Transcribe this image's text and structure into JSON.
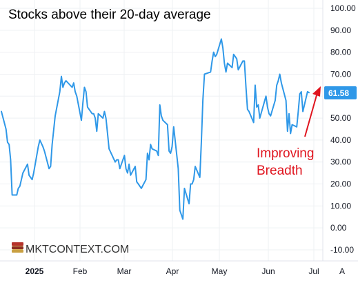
{
  "chart_data": {
    "type": "line",
    "title": "Stocks above their 20-day average",
    "ylim": [
      -10,
      100
    ],
    "y_ticks": [
      "100.00",
      "90.00",
      "80.00",
      "70.00",
      "60.00",
      "50.00",
      "40.00",
      "30.00",
      "20.00",
      "10.00",
      "0.00",
      "-10.00"
    ],
    "x_ticks": [
      {
        "label": "2025",
        "date": "2025-01-01",
        "bold": true
      },
      {
        "label": "Feb",
        "date": "2025-02-01",
        "bold": false
      },
      {
        "label": "Mar",
        "date": "2025-03-01",
        "bold": false
      },
      {
        "label": "Apr",
        "date": "2025-04-01",
        "bold": false
      },
      {
        "label": "May",
        "date": "2025-05-01",
        "bold": false
      },
      {
        "label": "Jun",
        "date": "2025-06-01",
        "bold": false
      },
      {
        "label": "Jul",
        "date": "2025-07-01",
        "bold": false
      }
    ],
    "last_value_label": "61.58",
    "annotation": {
      "lines": [
        "Improving",
        "Breadth"
      ]
    },
    "series": [
      {
        "color": "#2f98e8",
        "points": [
          [
            "2024-12-06",
            53
          ],
          [
            "2024-12-09",
            45
          ],
          [
            "2024-12-10",
            39
          ],
          [
            "2024-12-11",
            38
          ],
          [
            "2024-12-12",
            31
          ],
          [
            "2024-12-13",
            15
          ],
          [
            "2024-12-16",
            15
          ],
          [
            "2024-12-17",
            18
          ],
          [
            "2024-12-18",
            19
          ],
          [
            "2024-12-19",
            22
          ],
          [
            "2024-12-20",
            25
          ],
          [
            "2024-12-23",
            29
          ],
          [
            "2024-12-24",
            24
          ],
          [
            "2024-12-26",
            22
          ],
          [
            "2024-12-27",
            25
          ],
          [
            "2024-12-30",
            37
          ],
          [
            "2024-12-31",
            40
          ],
          [
            "2025-01-02",
            37
          ],
          [
            "2025-01-03",
            35
          ],
          [
            "2025-01-06",
            27
          ],
          [
            "2025-01-07",
            28
          ],
          [
            "2025-01-08",
            38
          ],
          [
            "2025-01-10",
            51
          ],
          [
            "2025-01-13",
            62
          ],
          [
            "2025-01-14",
            69
          ],
          [
            "2025-01-15",
            64
          ],
          [
            "2025-01-16",
            66
          ],
          [
            "2025-01-17",
            67
          ],
          [
            "2025-01-21",
            64
          ],
          [
            "2025-01-22",
            66
          ],
          [
            "2025-01-23",
            62
          ],
          [
            "2025-01-24",
            60
          ],
          [
            "2025-01-27",
            49
          ],
          [
            "2025-01-28",
            57
          ],
          [
            "2025-01-29",
            64
          ],
          [
            "2025-01-30",
            62
          ],
          [
            "2025-01-31",
            55
          ],
          [
            "2025-02-03",
            52
          ],
          [
            "2025-02-04",
            52
          ],
          [
            "2025-02-05",
            50
          ],
          [
            "2025-02-06",
            44
          ],
          [
            "2025-02-07",
            52
          ],
          [
            "2025-02-10",
            50
          ],
          [
            "2025-02-11",
            53
          ],
          [
            "2025-02-12",
            50
          ],
          [
            "2025-02-13",
            43
          ],
          [
            "2025-02-14",
            36
          ],
          [
            "2025-02-18",
            30
          ],
          [
            "2025-02-19",
            31
          ],
          [
            "2025-02-20",
            31
          ],
          [
            "2025-02-21",
            27
          ],
          [
            "2025-02-24",
            33
          ],
          [
            "2025-02-25",
            27
          ],
          [
            "2025-02-26",
            25
          ],
          [
            "2025-02-27",
            29
          ],
          [
            "2025-02-28",
            24
          ],
          [
            "2025-03-03",
            28
          ],
          [
            "2025-03-04",
            21
          ],
          [
            "2025-03-05",
            20
          ],
          [
            "2025-03-06",
            19
          ],
          [
            "2025-03-07",
            18
          ],
          [
            "2025-03-10",
            22
          ],
          [
            "2025-03-11",
            34
          ],
          [
            "2025-03-12",
            31
          ],
          [
            "2025-03-13",
            38
          ],
          [
            "2025-03-14",
            36
          ],
          [
            "2025-03-17",
            35
          ],
          [
            "2025-03-18",
            33
          ],
          [
            "2025-03-19",
            56
          ],
          [
            "2025-03-20",
            51
          ],
          [
            "2025-03-21",
            49
          ],
          [
            "2025-03-24",
            47
          ],
          [
            "2025-03-25",
            35
          ],
          [
            "2025-03-26",
            34
          ],
          [
            "2025-03-27",
            37
          ],
          [
            "2025-03-28",
            46
          ],
          [
            "2025-03-31",
            27
          ],
          [
            "2025-04-01",
            8
          ],
          [
            "2025-04-02",
            6
          ],
          [
            "2025-04-03",
            4
          ],
          [
            "2025-04-04",
            18
          ],
          [
            "2025-04-07",
            11
          ],
          [
            "2025-04-08",
            20
          ],
          [
            "2025-04-09",
            20
          ],
          [
            "2025-04-10",
            22
          ],
          [
            "2025-04-11",
            28
          ],
          [
            "2025-04-14",
            23
          ],
          [
            "2025-04-15",
            39
          ],
          [
            "2025-04-16",
            58
          ],
          [
            "2025-04-17",
            70
          ],
          [
            "2025-04-21",
            71
          ],
          [
            "2025-04-22",
            76
          ],
          [
            "2025-04-23",
            80
          ],
          [
            "2025-04-24",
            78
          ],
          [
            "2025-04-25",
            79
          ],
          [
            "2025-04-28",
            86
          ],
          [
            "2025-04-29",
            82
          ],
          [
            "2025-04-30",
            75
          ],
          [
            "2025-05-01",
            71
          ],
          [
            "2025-05-02",
            75
          ],
          [
            "2025-05-05",
            73
          ],
          [
            "2025-05-06",
            79
          ],
          [
            "2025-05-07",
            78
          ],
          [
            "2025-05-08",
            77
          ],
          [
            "2025-05-09",
            72
          ],
          [
            "2025-05-12",
            76
          ],
          [
            "2025-05-13",
            76
          ],
          [
            "2025-05-14",
            64
          ],
          [
            "2025-05-15",
            54
          ],
          [
            "2025-05-16",
            53
          ],
          [
            "2025-05-19",
            48
          ],
          [
            "2025-05-20",
            65
          ],
          [
            "2025-05-21",
            55
          ],
          [
            "2025-05-22",
            56
          ],
          [
            "2025-05-23",
            50
          ],
          [
            "2025-05-27",
            60
          ],
          [
            "2025-05-28",
            55
          ],
          [
            "2025-05-29",
            52
          ],
          [
            "2025-05-30",
            51
          ],
          [
            "2025-06-02",
            58
          ],
          [
            "2025-06-03",
            65
          ],
          [
            "2025-06-04",
            67
          ],
          [
            "2025-06-05",
            70
          ],
          [
            "2025-06-06",
            66
          ],
          [
            "2025-06-09",
            58
          ],
          [
            "2025-06-10",
            44
          ],
          [
            "2025-06-11",
            52
          ],
          [
            "2025-06-12",
            43
          ],
          [
            "2025-06-13",
            47
          ],
          [
            "2025-06-16",
            46
          ],
          [
            "2025-06-17",
            53
          ],
          [
            "2025-06-18",
            61
          ],
          [
            "2025-06-19",
            62
          ],
          [
            "2025-06-20",
            53
          ],
          [
            "2025-06-23",
            62
          ],
          [
            "2025-06-24",
            61.58
          ]
        ]
      }
    ]
  },
  "brand": {
    "name": "MKTCONTEXT.COM"
  },
  "axis": {
    "auto_label": "A"
  }
}
